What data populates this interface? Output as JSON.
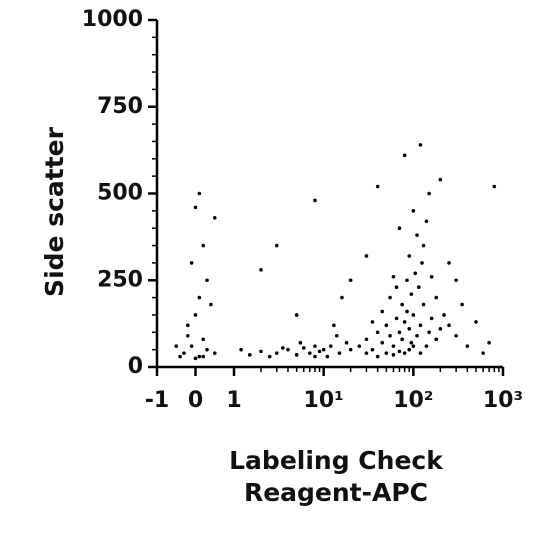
{
  "chart_data": {
    "type": "scatter",
    "color": "#000000",
    "ylabel": "Side scatter",
    "xlabel": [
      "Labeling Check",
      "Reagent-APC"
    ],
    "xscale": "biexponential",
    "minor_ticks": true,
    "xlim": [
      -1,
      1000
    ],
    "ylim": [
      0,
      1000
    ],
    "xticks": [
      -1,
      0,
      1,
      {
        "value": 10,
        "label": "10¹"
      },
      {
        "value": 100,
        "label": "10²"
      },
      {
        "value": 1000,
        "label": "10³"
      }
    ],
    "yticks": [
      0,
      250,
      500,
      750,
      1000
    ],
    "x": [
      -0.3,
      -0.1,
      0.1,
      0.2,
      -0.2,
      0,
      0.1,
      0.3,
      -0.1,
      0.2,
      0,
      0.1,
      -0.2,
      0.3,
      0.5,
      -0.5,
      0.4,
      0.2,
      -0.4,
      0,
      1.5,
      2,
      3,
      4,
      5,
      6,
      7,
      8,
      9,
      2.5,
      3.5,
      1.2,
      5.5,
      8,
      10,
      12,
      15,
      14,
      18,
      11,
      13,
      16,
      20,
      25,
      30,
      35,
      40,
      45,
      50,
      55,
      60,
      65,
      70,
      75,
      80,
      85,
      90,
      95,
      100,
      110,
      120,
      130,
      140,
      150,
      160,
      180,
      200,
      30,
      40,
      50,
      60,
      70,
      80,
      90,
      100,
      120,
      35,
      45,
      55,
      65,
      75,
      85,
      95,
      105,
      115,
      125,
      60,
      90,
      110,
      130,
      70,
      100,
      140,
      160,
      180,
      220,
      250,
      300,
      400,
      500,
      600,
      250,
      300,
      350,
      150,
      120,
      80,
      30,
      20,
      40,
      200,
      700,
      800,
      2,
      5,
      3,
      0.5,
      8
    ],
    "y": [
      40,
      60,
      30,
      80,
      120,
      150,
      200,
      250,
      300,
      350,
      460,
      500,
      90,
      50,
      40,
      60,
      180,
      30,
      30,
      25,
      35,
      45,
      40,
      50,
      35,
      55,
      40,
      60,
      45,
      30,
      55,
      50,
      70,
      30,
      50,
      60,
      40,
      90,
      70,
      30,
      120,
      200,
      50,
      60,
      80,
      50,
      100,
      70,
      120,
      90,
      60,
      140,
      100,
      80,
      130,
      160,
      110,
      70,
      150,
      90,
      120,
      180,
      60,
      100,
      140,
      80,
      110,
      40,
      30,
      40,
      35,
      45,
      40,
      50,
      60,
      40,
      130,
      160,
      200,
      230,
      180,
      250,
      210,
      270,
      230,
      300,
      260,
      320,
      380,
      350,
      400,
      450,
      420,
      260,
      200,
      150,
      120,
      90,
      60,
      130,
      40,
      300,
      250,
      180,
      500,
      640,
      610,
      320,
      250,
      520,
      540,
      70,
      520,
      280,
      150,
      350,
      430,
      480
    ]
  }
}
